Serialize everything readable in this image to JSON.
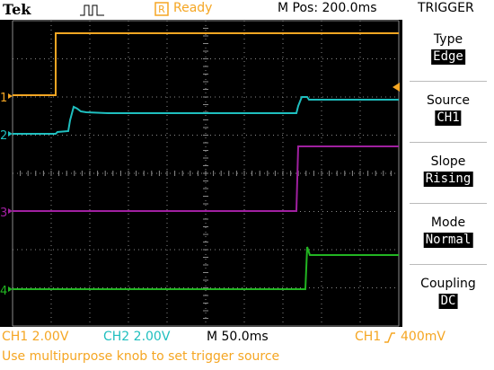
{
  "colors": {
    "ch1": "#f5a623",
    "ch2": "#1fbfbf",
    "ch3": "#a020a0",
    "ch4": "#22b522",
    "grid": "#8a8a8a",
    "status_accent": "#f5a623"
  },
  "header": {
    "brand": "Tek",
    "acq_icon": "pulse-waveform-icon",
    "status": "Ready",
    "mpos": "M Pos: 200.0ms",
    "menu_title": "TRIGGER"
  },
  "channel_markers": [
    "1",
    "2",
    "3",
    "4"
  ],
  "menu": [
    {
      "label": "Type",
      "value": "Edge"
    },
    {
      "label": "Source",
      "value": "CH1"
    },
    {
      "label": "Slope",
      "value": "Rising"
    },
    {
      "label": "Mode",
      "value": "Normal"
    },
    {
      "label": "Coupling",
      "value": "DC"
    }
  ],
  "readouts": {
    "ch1": "CH1  2.00V",
    "ch2": "CH2  2.00V",
    "timebase": "M 50.0ms",
    "trigger_source": "CH1",
    "trigger_level": "400mV"
  },
  "message": "Use multipurpose knob to set trigger source"
}
